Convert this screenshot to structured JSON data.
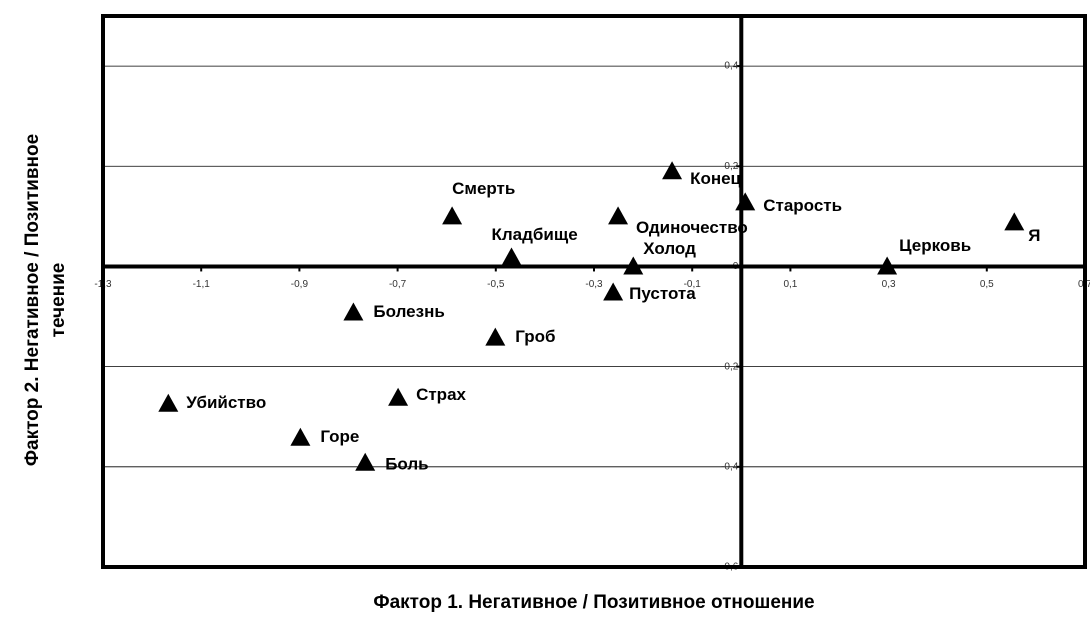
{
  "chart_data": {
    "type": "scatter",
    "xlabel": "Фактор 1. Негативное / Позитивное отношение",
    "ylabel": [
      "Фактор 2. Негативное / Позитивное",
      "течение"
    ],
    "xlim": [
      -1.3,
      0.7
    ],
    "ylim": [
      -0.6,
      0.5
    ],
    "xticks": [
      {
        "value": -1.3,
        "label": "-1,3"
      },
      {
        "value": -1.1,
        "label": "-1,1"
      },
      {
        "value": -0.9,
        "label": "-0,9"
      },
      {
        "value": -0.7,
        "label": "-0,7"
      },
      {
        "value": -0.5,
        "label": "-0,5"
      },
      {
        "value": -0.3,
        "label": "-0,3"
      },
      {
        "value": -0.1,
        "label": "-0,1"
      },
      {
        "value": 0.1,
        "label": "0,1"
      },
      {
        "value": 0.3,
        "label": "0,3"
      },
      {
        "value": 0.5,
        "label": "0,5"
      },
      {
        "value": 0.7,
        "label": "0,7"
      }
    ],
    "yticks": [
      {
        "value": -0.6,
        "label": "-0,6"
      },
      {
        "value": -0.4,
        "label": "-0,4"
      },
      {
        "value": -0.2,
        "label": "-0,2"
      },
      0,
      {
        "value": 0.2,
        "label": "0,2"
      },
      {
        "value": 0.4,
        "label": "0,4"
      }
    ],
    "grid": true,
    "color": "#000000",
    "labels": [
      "Убийство",
      "Горе",
      "Боль",
      "Страх",
      "Болезнь",
      "Гроб",
      "Смерть",
      "Кладбище",
      "Пустота",
      "Холод",
      "Одиночество",
      "Конец",
      "Старость",
      "Церковь",
      "Я"
    ],
    "x": [
      -1.167,
      -0.898,
      -0.766,
      -0.699,
      -0.79,
      -0.501,
      -0.589,
      -0.468,
      -0.261,
      -0.22,
      -0.251,
      -0.141,
      0.008,
      0.297,
      0.556
    ],
    "y": [
      -0.274,
      -0.342,
      -0.392,
      -0.262,
      -0.092,
      -0.142,
      0.1,
      0.018,
      -0.052,
      0.0,
      0.1,
      0.19,
      0.128,
      0.0,
      0.088
    ]
  }
}
